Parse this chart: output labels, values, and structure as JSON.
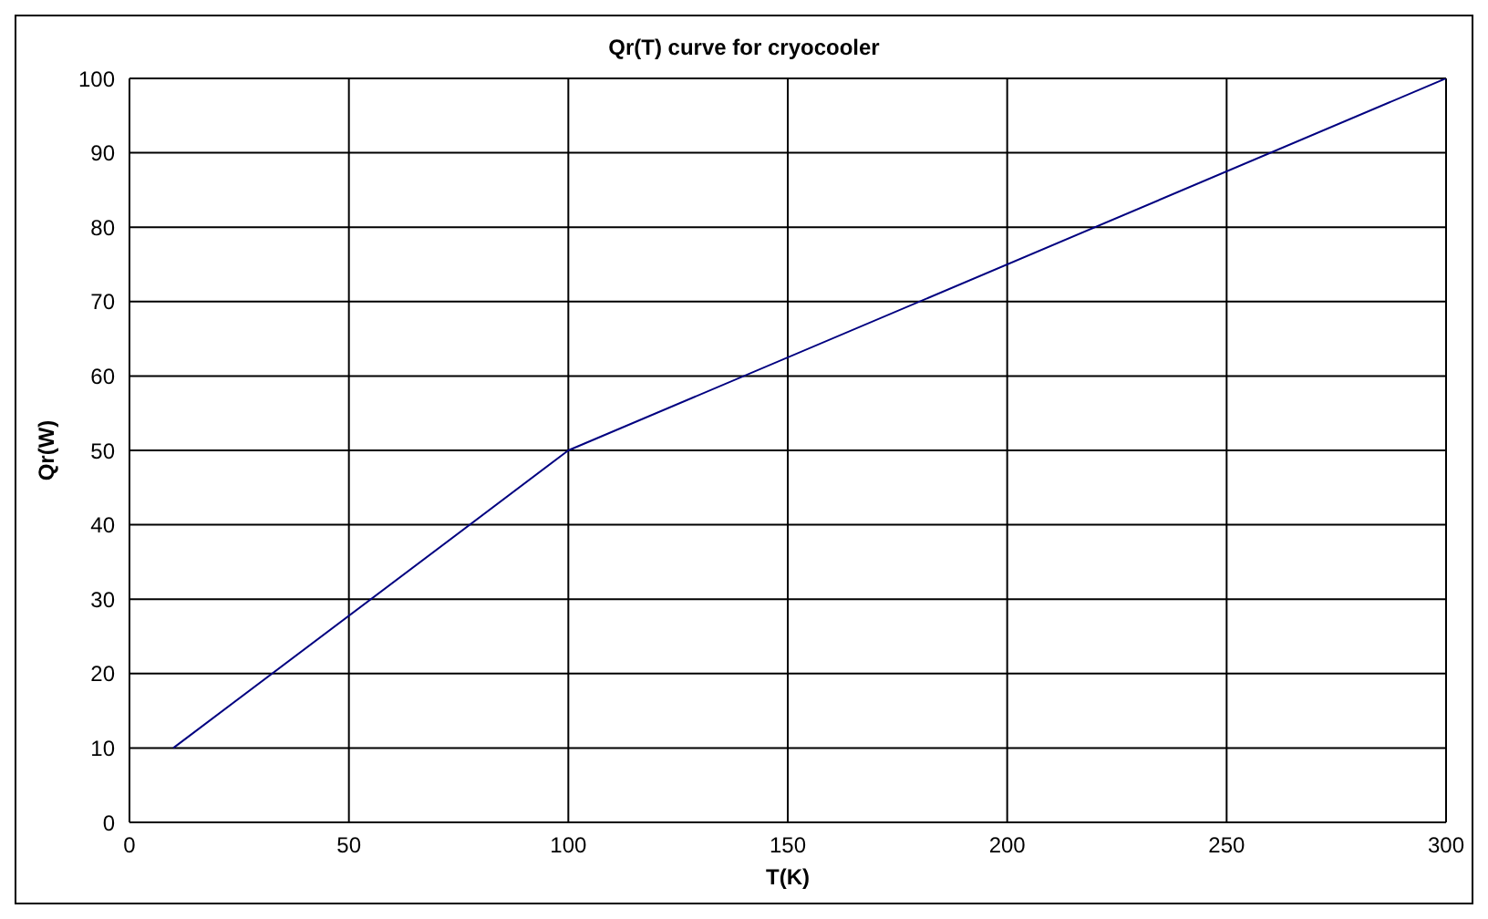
{
  "chart_data": {
    "type": "line",
    "title": "Qr(T) curve for cryocooler",
    "xlabel": "T(K)",
    "ylabel": "Qr(W)",
    "x": [
      10,
      100,
      300
    ],
    "series": [
      {
        "color": "#000080",
        "values": [
          10,
          50,
          100
        ]
      }
    ],
    "xlim": [
      0,
      300
    ],
    "ylim": [
      0,
      100
    ],
    "xticks": [
      0,
      50,
      100,
      150,
      200,
      250,
      300
    ],
    "yticks": [
      0,
      10,
      20,
      30,
      40,
      50,
      60,
      70,
      80,
      90,
      100
    ],
    "grid": true
  }
}
